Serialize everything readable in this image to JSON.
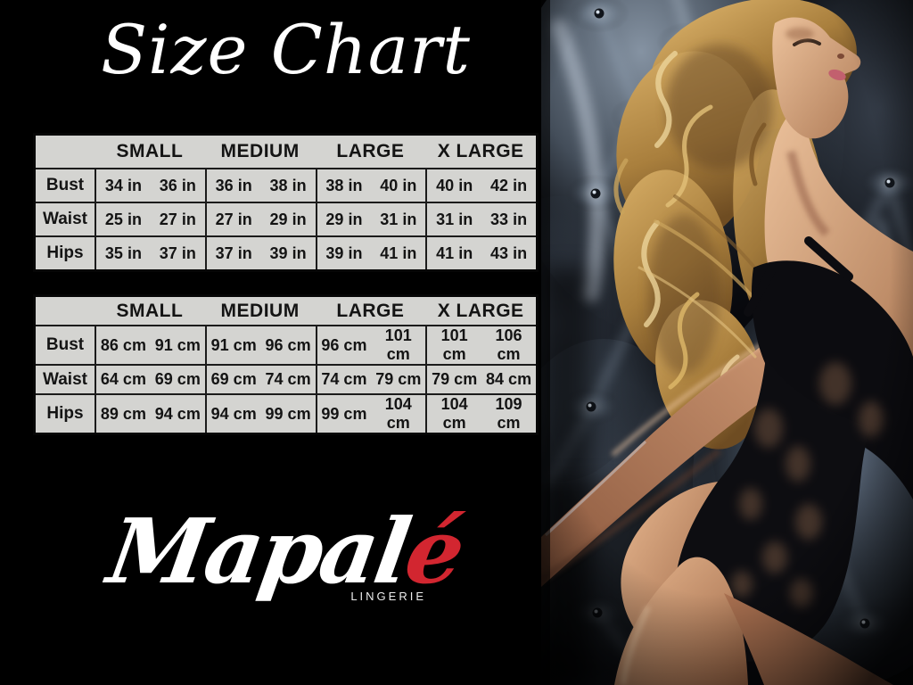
{
  "title": "Size Chart",
  "size_tables": [
    {
      "id": "in",
      "headers": [
        "SMALL",
        "MEDIUM",
        "LARGE",
        "X LARGE"
      ],
      "rows": [
        {
          "label": "Bust",
          "values": [
            [
              "34 in",
              "36 in"
            ],
            [
              "36 in",
              "38 in"
            ],
            [
              "38 in",
              "40 in"
            ],
            [
              "40 in",
              "42 in"
            ]
          ]
        },
        {
          "label": "Waist",
          "values": [
            [
              "25 in",
              "27 in"
            ],
            [
              "27 in",
              "29 in"
            ],
            [
              "29 in",
              "31 in"
            ],
            [
              "31 in",
              "33 in"
            ]
          ]
        },
        {
          "label": "Hips",
          "values": [
            [
              "35 in",
              "37 in"
            ],
            [
              "37 in",
              "39 in"
            ],
            [
              "39 in",
              "41 in"
            ],
            [
              "41 in",
              "43 in"
            ]
          ]
        }
      ]
    },
    {
      "id": "cm",
      "headers": [
        "SMALL",
        "MEDIUM",
        "LARGE",
        "X LARGE"
      ],
      "rows": [
        {
          "label": "Bust",
          "values": [
            [
              "86 cm",
              "91 cm"
            ],
            [
              "91 cm",
              "96 cm"
            ],
            [
              "96 cm",
              "101 cm"
            ],
            [
              "101 cm",
              "106 cm"
            ]
          ]
        },
        {
          "label": "Waist",
          "values": [
            [
              "64 cm",
              "69 cm"
            ],
            [
              "69 cm",
              "74 cm"
            ],
            [
              "74 cm",
              "79 cm"
            ],
            [
              "79 cm",
              "84 cm"
            ]
          ]
        },
        {
          "label": "Hips",
          "values": [
            [
              "89 cm",
              "94 cm"
            ],
            [
              "94 cm",
              "99 cm"
            ],
            [
              "99 cm",
              "104 cm"
            ],
            [
              "104 cm",
              "109 cm"
            ]
          ]
        }
      ]
    }
  ],
  "brand": {
    "name_main": "Mapal",
    "name_accent": "é",
    "subtitle": "LINGERIE"
  },
  "photo": {
    "alt": "Model wearing a black lace bodysuit against dark tufted upholstery"
  },
  "colors": {
    "background": "#000000",
    "table_background": "#d4d4d1",
    "table_text": "#141414",
    "title_text": "#ffffff",
    "accent_red": "#d22630"
  }
}
